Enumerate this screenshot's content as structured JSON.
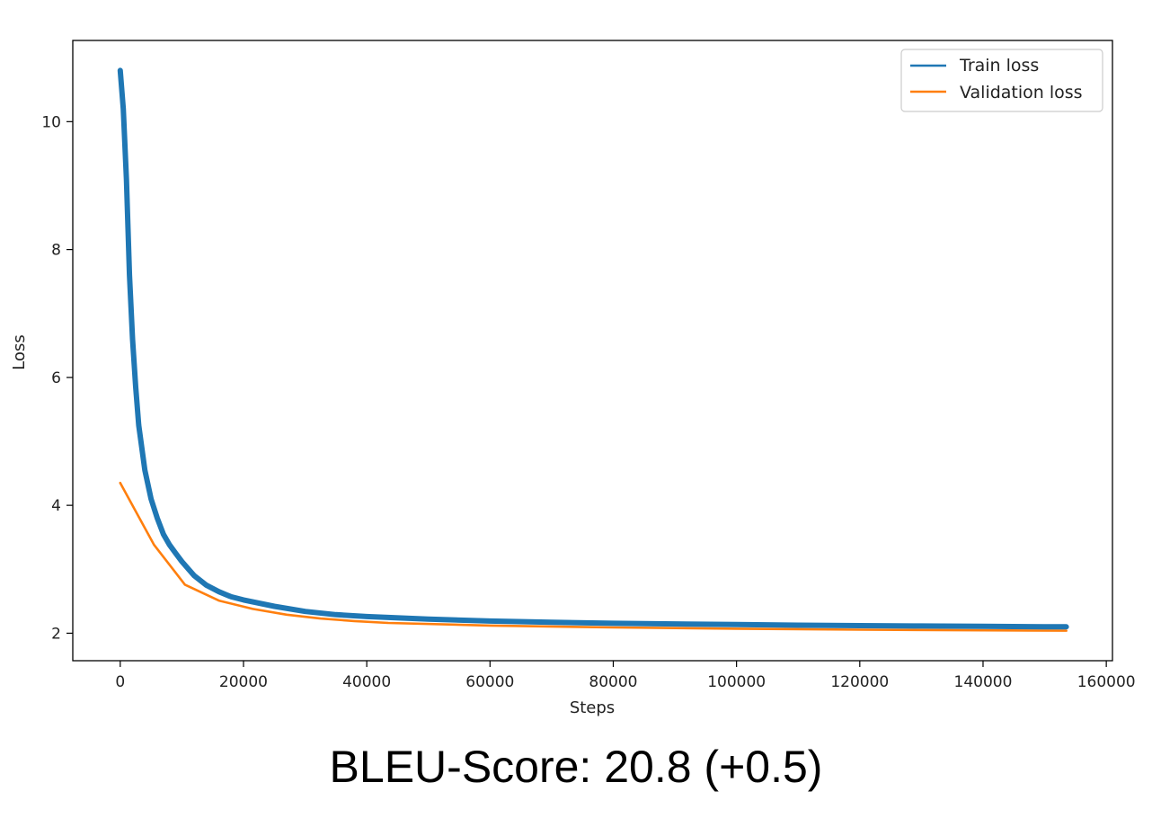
{
  "caption": "BLEU-Score: 20.8 (+0.5)",
  "chart_data": {
    "type": "line",
    "xlabel": "Steps",
    "ylabel": "Loss",
    "xlim": [
      -7700,
      161000
    ],
    "ylim": [
      1.57,
      11.27
    ],
    "x_ticks": [
      0,
      20000,
      40000,
      60000,
      80000,
      100000,
      120000,
      140000,
      160000
    ],
    "x_tick_labels": [
      "0",
      "20000",
      "40000",
      "60000",
      "80000",
      "100000",
      "120000",
      "140000",
      "160000"
    ],
    "y_ticks": [
      2,
      4,
      6,
      8,
      10
    ],
    "y_tick_labels": [
      "2",
      "4",
      "6",
      "8",
      "10"
    ],
    "grid": false,
    "legend_position": "top-right",
    "series": [
      {
        "name": "Train loss",
        "color": "#1f77b4",
        "x": [
          0,
          500,
          1000,
          1500,
          2000,
          2500,
          3000,
          4000,
          5000,
          6000,
          7000,
          8000,
          9000,
          10000,
          12000,
          14000,
          16000,
          18000,
          20000,
          25000,
          30000,
          35000,
          40000,
          50000,
          60000,
          70000,
          80000,
          90000,
          100000,
          110000,
          120000,
          130000,
          140000,
          150000,
          153500
        ],
        "y": [
          10.8,
          10.2,
          9.1,
          7.6,
          6.6,
          5.85,
          5.25,
          4.55,
          4.1,
          3.8,
          3.55,
          3.38,
          3.25,
          3.12,
          2.9,
          2.75,
          2.65,
          2.57,
          2.52,
          2.42,
          2.34,
          2.29,
          2.26,
          2.22,
          2.19,
          2.17,
          2.155,
          2.145,
          2.135,
          2.125,
          2.118,
          2.112,
          2.107,
          2.102,
          2.1
        ]
      },
      {
        "name": "Validation loss",
        "color": "#ff7f0e",
        "x": [
          0,
          5500,
          10500,
          16000,
          21500,
          27000,
          32500,
          38000,
          43500,
          60000,
          80000,
          100000,
          120000,
          140000,
          153500
        ],
        "y": [
          4.35,
          3.38,
          2.76,
          2.51,
          2.38,
          2.29,
          2.23,
          2.19,
          2.16,
          2.12,
          2.09,
          2.07,
          2.055,
          2.045,
          2.04
        ]
      }
    ]
  }
}
